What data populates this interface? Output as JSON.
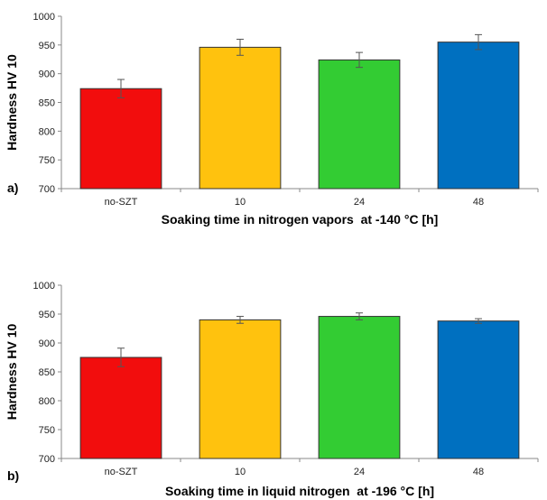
{
  "chart_data": [
    {
      "type": "bar",
      "panel_label": "a)",
      "categories": [
        "no-SZT",
        "10",
        "24",
        "48"
      ],
      "values": [
        874,
        946,
        924,
        955
      ],
      "errors": [
        16,
        14,
        13,
        13
      ],
      "colors": [
        "#f20d0d",
        "#ffc20e",
        "#33cc33",
        "#0070c0"
      ],
      "ylabel": "Hardness HV 10",
      "xlabel": "Soaking time in nitrogen vapors  at -140 °C [h]",
      "ylim": [
        700,
        1000
      ],
      "yticks": [
        700,
        750,
        800,
        850,
        900,
        950,
        1000
      ],
      "grid": false
    },
    {
      "type": "bar",
      "panel_label": "b)",
      "categories": [
        "no-SZT",
        "10",
        "24",
        "48"
      ],
      "values": [
        875,
        940,
        946,
        938
      ],
      "errors": [
        16,
        6,
        6,
        4
      ],
      "colors": [
        "#f20d0d",
        "#ffc20e",
        "#33cc33",
        "#0070c0"
      ],
      "ylabel": "Hardness HV 10",
      "xlabel": "Soaking time in liquid nitrogen  at -196 °C [h]",
      "ylim": [
        700,
        1000
      ],
      "yticks": [
        700,
        750,
        800,
        850,
        900,
        950,
        1000
      ],
      "grid": false
    }
  ]
}
